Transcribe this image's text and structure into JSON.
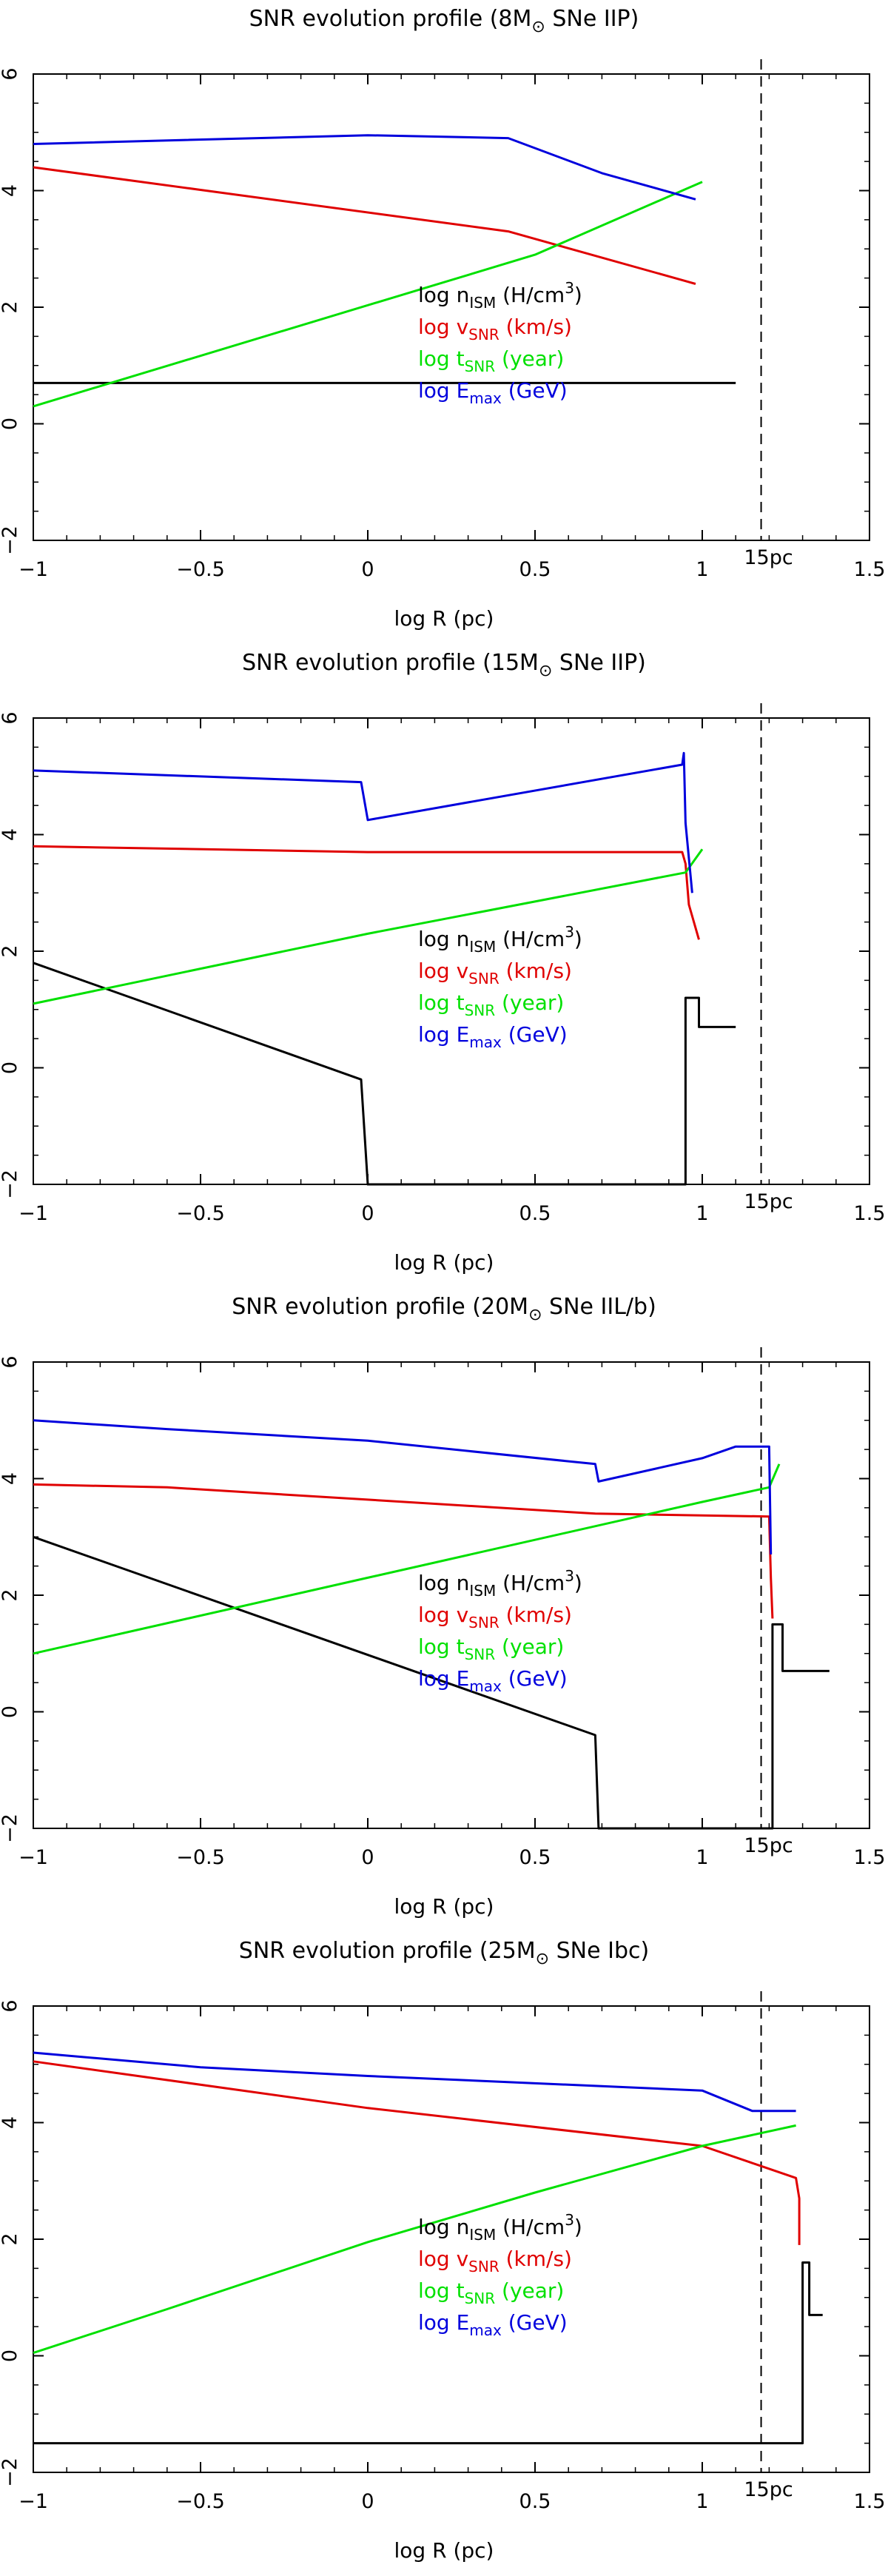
{
  "figure": {
    "x_label": "log R (pc)",
    "marker_label": "15pc",
    "legend": [
      {
        "prefix": "log ",
        "main": "n",
        "sub": "ISM",
        "unit": " (H/cm",
        "sup": "3",
        "close": ")",
        "color": "#000000"
      },
      {
        "prefix": "log ",
        "main": "v",
        "sub": "SNR",
        "unit": " (km/s)",
        "sup": "",
        "close": "",
        "color": "#e00000"
      },
      {
        "prefix": "log ",
        "main": "t",
        "sub": "SNR",
        "unit": " (year)",
        "sup": "",
        "close": "",
        "color": "#00e000"
      },
      {
        "prefix": "log ",
        "main": "E",
        "sub": "max",
        "unit": " (GeV)",
        "sup": "",
        "close": "",
        "color": "#0000dd"
      }
    ]
  },
  "chart_data": [
    {
      "type": "line",
      "title_prefix": "SNR evolution profile (8M",
      "title_symbol": "⊙",
      "title_suffix": " SNe IIP)",
      "xlim": [
        -1,
        1.5
      ],
      "ylim": [
        -2,
        6
      ],
      "x_ticks": [
        "−1",
        "−0.5",
        "0",
        "0.5",
        "1",
        "1.5"
      ],
      "y_ticks": [
        "−2",
        "0",
        "2",
        "4",
        "6"
      ],
      "vline_x": 1.176,
      "series": [
        {
          "name": "log n_ISM",
          "color": "#000000",
          "points": [
            [
              -1,
              0.7
            ],
            [
              1.1,
              0.7
            ]
          ]
        },
        {
          "name": "log v_SNR",
          "color": "#e00000",
          "points": [
            [
              -1,
              4.4
            ],
            [
              0.42,
              3.3
            ],
            [
              0.98,
              2.4
            ]
          ]
        },
        {
          "name": "log t_SNR",
          "color": "#00e000",
          "points": [
            [
              -1,
              0.3
            ],
            [
              0.5,
              2.9
            ],
            [
              1,
              4.15
            ]
          ]
        },
        {
          "name": "log E_max",
          "color": "#0000dd",
          "points": [
            [
              -1,
              4.8
            ],
            [
              0,
              4.95
            ],
            [
              0.42,
              4.9
            ],
            [
              0.7,
              4.3
            ],
            [
              0.98,
              3.85
            ]
          ]
        }
      ]
    },
    {
      "type": "line",
      "title_prefix": "SNR evolution profile (15M",
      "title_symbol": "⊙",
      "title_suffix": " SNe IIP)",
      "xlim": [
        -1,
        1.5
      ],
      "ylim": [
        -2,
        6
      ],
      "x_ticks": [
        "−1",
        "−0.5",
        "0",
        "0.5",
        "1",
        "1.5"
      ],
      "y_ticks": [
        "−2",
        "0",
        "2",
        "4",
        "6"
      ],
      "vline_x": 1.176,
      "series": [
        {
          "name": "log n_ISM",
          "color": "#000000",
          "points": [
            [
              -1,
              1.8
            ],
            [
              -0.02,
              -0.2
            ],
            [
              0,
              -2
            ],
            [
              0.95,
              -2
            ],
            [
              0.95,
              1.2
            ],
            [
              0.99,
              1.2
            ],
            [
              0.99,
              0.7
            ],
            [
              1.1,
              0.7
            ]
          ]
        },
        {
          "name": "log v_SNR",
          "color": "#e00000",
          "points": [
            [
              -1,
              3.8
            ],
            [
              0,
              3.7
            ],
            [
              0.94,
              3.7
            ],
            [
              0.95,
              3.5
            ],
            [
              0.96,
              2.8
            ],
            [
              0.99,
              2.2
            ]
          ]
        },
        {
          "name": "log t_SNR",
          "color": "#00e000",
          "points": [
            [
              -1,
              1.1
            ],
            [
              0,
              2.3
            ],
            [
              0.95,
              3.35
            ],
            [
              1,
              3.75
            ]
          ]
        },
        {
          "name": "log E_max",
          "color": "#0000dd",
          "points": [
            [
              -1,
              5.1
            ],
            [
              -0.02,
              4.9
            ],
            [
              0,
              4.25
            ],
            [
              0.94,
              5.2
            ],
            [
              0.945,
              5.4
            ],
            [
              0.95,
              4.2
            ],
            [
              0.97,
              3.0
            ]
          ]
        }
      ]
    },
    {
      "type": "line",
      "title_prefix": "SNR evolution profile (20M",
      "title_symbol": "⊙",
      "title_suffix": " SNe IIL/b)",
      "xlim": [
        -1,
        1.5
      ],
      "ylim": [
        -2,
        6
      ],
      "x_ticks": [
        "−1",
        "−0.5",
        "0",
        "0.5",
        "1",
        "1.5"
      ],
      "y_ticks": [
        "−2",
        "0",
        "2",
        "4",
        "6"
      ],
      "vline_x": 1.176,
      "series": [
        {
          "name": "log n_ISM",
          "color": "#000000",
          "points": [
            [
              -1,
              3.0
            ],
            [
              0.68,
              -0.4
            ],
            [
              0.69,
              -2
            ],
            [
              1.21,
              -2
            ],
            [
              1.21,
              1.5
            ],
            [
              1.24,
              1.5
            ],
            [
              1.24,
              0.7
            ],
            [
              1.38,
              0.7
            ]
          ]
        },
        {
          "name": "log v_SNR",
          "color": "#e00000",
          "points": [
            [
              -1,
              3.9
            ],
            [
              -0.6,
              3.85
            ],
            [
              0.68,
              3.4
            ],
            [
              1.2,
              3.35
            ],
            [
              1.205,
              2.3
            ],
            [
              1.21,
              1.6
            ]
          ]
        },
        {
          "name": "log t_SNR",
          "color": "#00e000",
          "points": [
            [
              -1,
              1.0
            ],
            [
              0,
              2.3
            ],
            [
              1,
              3.6
            ],
            [
              1.2,
              3.85
            ],
            [
              1.23,
              4.25
            ]
          ]
        },
        {
          "name": "log E_max",
          "color": "#0000dd",
          "points": [
            [
              -1,
              5.0
            ],
            [
              -0.6,
              4.85
            ],
            [
              0,
              4.65
            ],
            [
              0.68,
              4.25
            ],
            [
              0.69,
              3.95
            ],
            [
              1,
              4.35
            ],
            [
              1.1,
              4.55
            ],
            [
              1.2,
              4.55
            ],
            [
              1.205,
              2.7
            ]
          ]
        }
      ]
    },
    {
      "type": "line",
      "title_prefix": "SNR evolution profile (25M",
      "title_symbol": "⊙",
      "title_suffix": " SNe Ibc)",
      "xlim": [
        -1,
        1.5
      ],
      "ylim": [
        -2,
        6
      ],
      "x_ticks": [
        "−1",
        "−0.5",
        "0",
        "0.5",
        "1",
        "1.5"
      ],
      "y_ticks": [
        "−2",
        "0",
        "2",
        "4",
        "6"
      ],
      "vline_x": 1.176,
      "series": [
        {
          "name": "log n_ISM",
          "color": "#000000",
          "points": [
            [
              -1,
              -1.5
            ],
            [
              1.3,
              -1.5
            ],
            [
              1.3,
              1.6
            ],
            [
              1.32,
              1.6
            ],
            [
              1.32,
              0.7
            ],
            [
              1.36,
              0.7
            ]
          ]
        },
        {
          "name": "log v_SNR",
          "color": "#e00000",
          "points": [
            [
              -1,
              5.05
            ],
            [
              0,
              4.25
            ],
            [
              1,
              3.6
            ],
            [
              1.28,
              3.05
            ],
            [
              1.29,
              2.7
            ],
            [
              1.29,
              1.9
            ]
          ]
        },
        {
          "name": "log t_SNR",
          "color": "#00e000",
          "points": [
            [
              -1,
              0.05
            ],
            [
              -0.6,
              0.8
            ],
            [
              0,
              1.95
            ],
            [
              0.5,
              2.8
            ],
            [
              1,
              3.6
            ],
            [
              1.28,
              3.95
            ]
          ]
        },
        {
          "name": "log E_max",
          "color": "#0000dd",
          "points": [
            [
              -1,
              5.2
            ],
            [
              -0.5,
              4.95
            ],
            [
              0,
              4.8
            ],
            [
              1,
              4.55
            ],
            [
              1.15,
              4.2
            ],
            [
              1.28,
              4.2
            ]
          ]
        }
      ]
    }
  ]
}
